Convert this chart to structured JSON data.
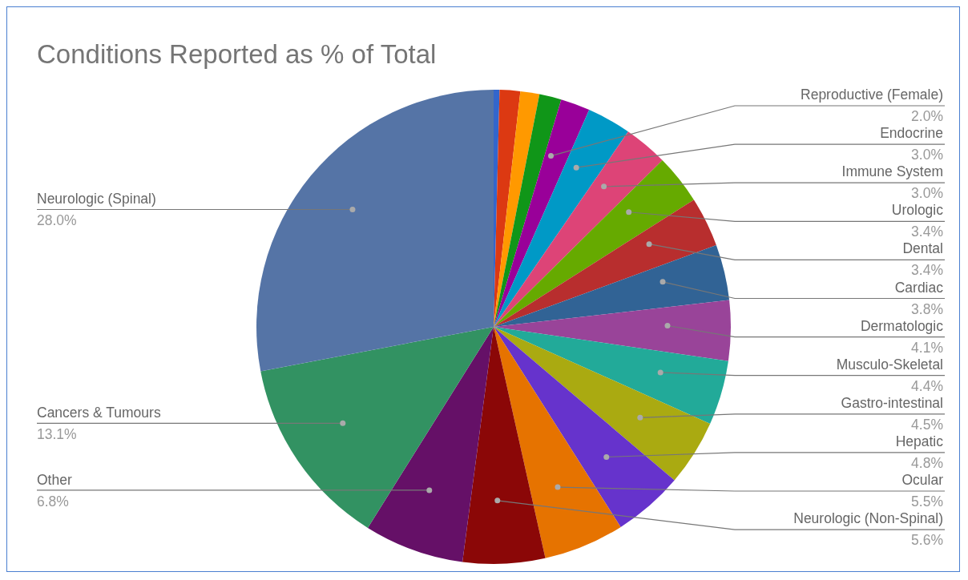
{
  "chart_data": {
    "type": "pie",
    "title": "Conditions Reported as % of Total",
    "categories": [
      null,
      null,
      null,
      null,
      "Reproductive (Female)",
      "Endocrine",
      "Immune System",
      "Urologic",
      "Dental",
      "Cardiac",
      "Dermatologic",
      "Musculo-Skeletal",
      "Gastro-intestinal",
      "Hepatic",
      "Ocular",
      "Neurologic (Non-Spinal)",
      "Other",
      "Cancers & Tumours",
      "Neurologic (Spinal)"
    ],
    "values": [
      0.4,
      1.4,
      1.3,
      1.5,
      2.0,
      3.0,
      3.0,
      3.4,
      3.4,
      3.8,
      4.1,
      4.4,
      4.5,
      4.8,
      5.5,
      5.6,
      6.8,
      13.1,
      28.0
    ],
    "value_labels": [
      null,
      null,
      null,
      null,
      "2.0%",
      "3.0%",
      "3.0%",
      "3.4%",
      "3.4%",
      "3.8%",
      "4.1%",
      "4.4%",
      "4.5%",
      "4.8%",
      "5.5%",
      "5.6%",
      "6.8%",
      "13.1%",
      "28.0%"
    ],
    "colors": [
      "#3366cc",
      "#dc3912",
      "#ff9900",
      "#109618",
      "#990099",
      "#0099c6",
      "#dd4477",
      "#66aa00",
      "#b82e2e",
      "#316395",
      "#994499",
      "#22aa99",
      "#aaaa11",
      "#6633cc",
      "#e67300",
      "#8b0707",
      "#651067",
      "#329262",
      "#5574a6"
    ]
  }
}
